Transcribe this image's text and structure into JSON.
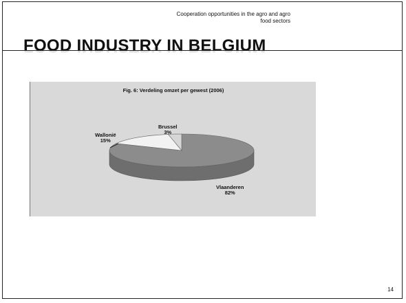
{
  "header": {
    "line1": "Cooperation opportunities in the agro and agro",
    "line2": "food sectors"
  },
  "title": "FOOD INDUSTRY IN BELGIUM",
  "page_number": "14",
  "colors": {
    "chart_background": "#d9d9d9",
    "slice_vlaanderen": "#8c8c8c",
    "slice_wallonie": "#f2f2f2",
    "slice_brussel": "#d6d6d6"
  },
  "chart_data": {
    "type": "pie",
    "title": "Fig. 6: Verdeling omzet per gewest (2006)",
    "slices": [
      {
        "name": "Vlaanderen",
        "value": 82,
        "label_pct": "82%"
      },
      {
        "name": "Wallonië",
        "value": 15,
        "label_pct": "15%"
      },
      {
        "name": "Brussel",
        "value": 3,
        "label_pct": "3%"
      }
    ],
    "three_d": true,
    "legend": "none"
  }
}
